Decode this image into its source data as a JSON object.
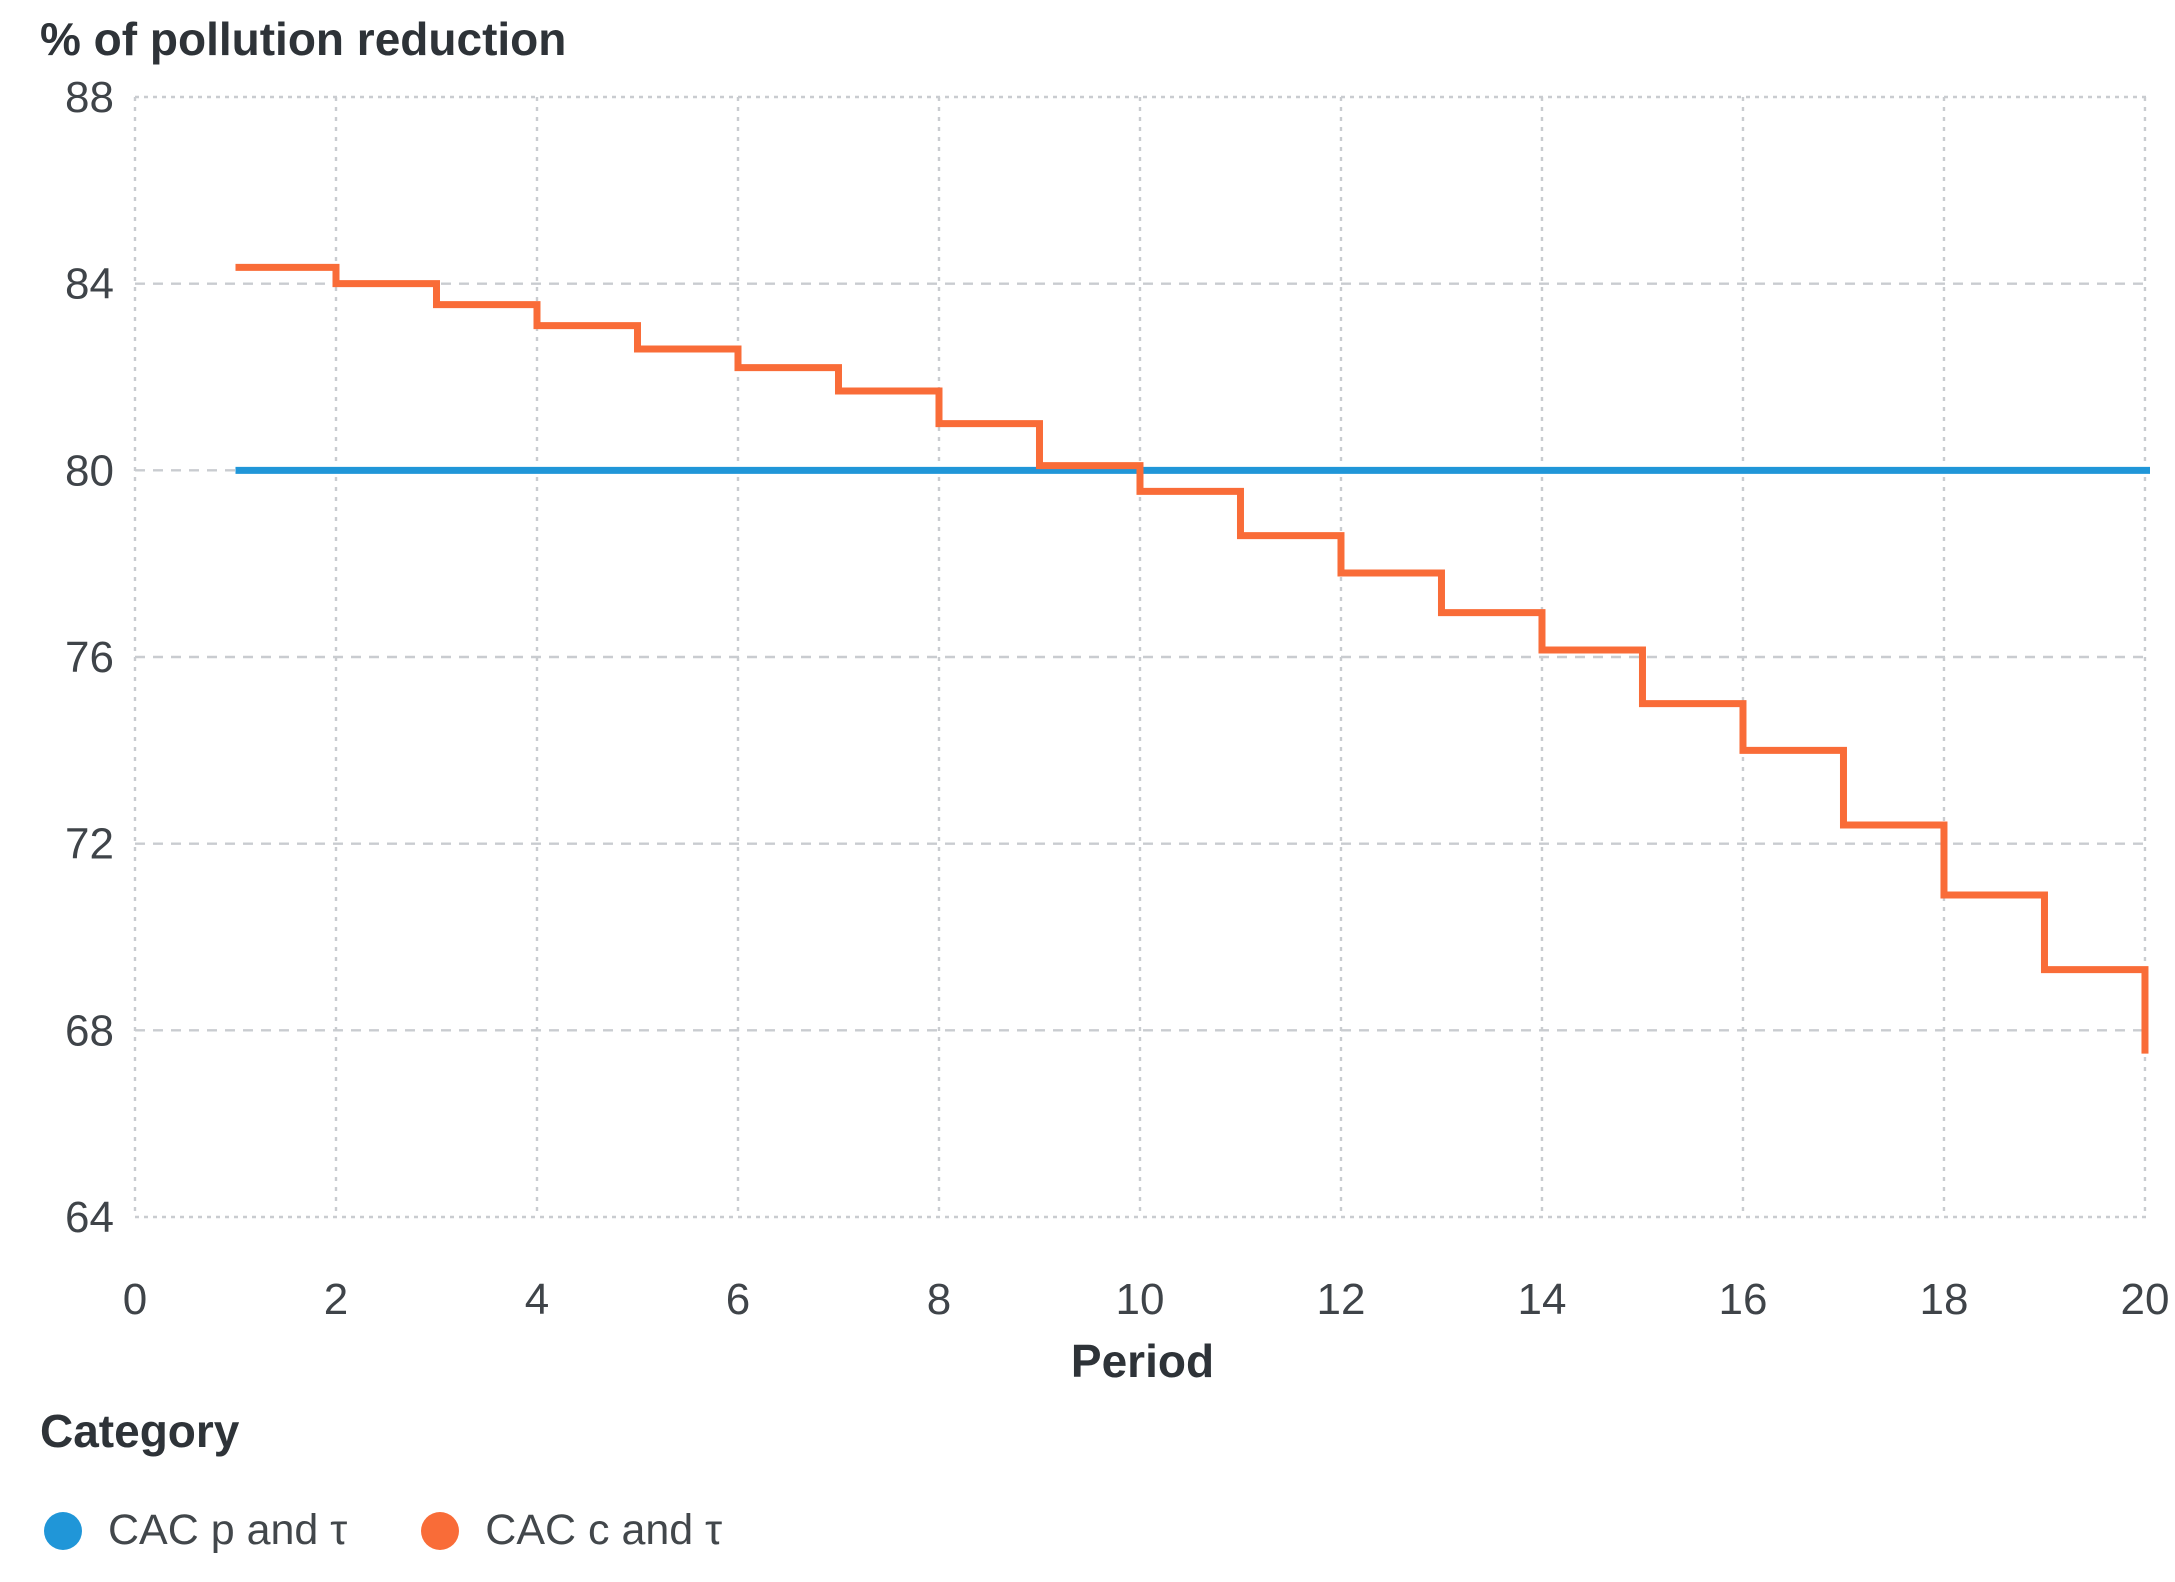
{
  "chart_data": {
    "type": "line",
    "title": "% of pollution reduction",
    "xlabel": "Period",
    "legend_title": "Category",
    "x_ticks": [
      0,
      2,
      4,
      6,
      8,
      10,
      12,
      14,
      16,
      18,
      20
    ],
    "y_ticks": [
      64,
      68,
      72,
      76,
      80,
      84,
      88
    ],
    "xlim": [
      0,
      20.05
    ],
    "ylim": [
      64,
      88
    ],
    "grid": "dashed-light-gray",
    "legend_position": "bottom-left",
    "series": [
      {
        "name": "CAC p and τ",
        "type": "constant",
        "color": "#2096D8",
        "value": 80,
        "x_start": 1,
        "x_end": 20.05
      },
      {
        "name": "CAC c and τ",
        "type": "step-after",
        "color": "#F96C38",
        "x": [
          1,
          2,
          3,
          4,
          5,
          6,
          7,
          8,
          9,
          10,
          11,
          12,
          13,
          14,
          15,
          16,
          17,
          18,
          19,
          20
        ],
        "values": [
          84.35,
          84.0,
          83.55,
          83.1,
          82.6,
          82.2,
          81.7,
          81.0,
          80.1,
          79.55,
          78.6,
          77.8,
          76.95,
          76.15,
          75.0,
          74.0,
          72.4,
          70.9,
          69.3,
          67.5
        ]
      }
    ]
  }
}
